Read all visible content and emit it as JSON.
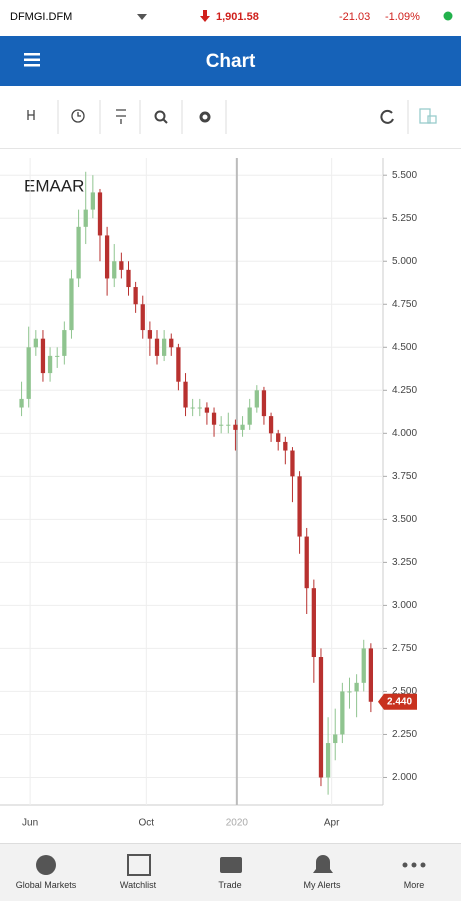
{
  "header": {
    "ticker": "DFMGI.DFM",
    "index_value": "1,901.58",
    "change": "-21.03",
    "change_pct": "-1.09%"
  },
  "app_bar": {
    "title": "Chart"
  },
  "chart_data": {
    "type": "candlestick",
    "title": "EMAAR",
    "up_color": "#8fc48f",
    "down_color": "#b8312f",
    "x": [
      0,
      1,
      2,
      3,
      4,
      5,
      6,
      7,
      8,
      9,
      10,
      11,
      12,
      13,
      14,
      15,
      16,
      17,
      18,
      19,
      20,
      21,
      22,
      23,
      24,
      25,
      26,
      27,
      28,
      29,
      30,
      31,
      32,
      33,
      34,
      35,
      36,
      37,
      38,
      39,
      40,
      41,
      42,
      43,
      44,
      45,
      46,
      47,
      48,
      49
    ],
    "open": [
      4.15,
      4.2,
      4.5,
      4.55,
      4.35,
      4.45,
      4.45,
      4.6,
      4.9,
      5.2,
      5.3,
      5.4,
      5.15,
      4.9,
      5.0,
      4.95,
      4.85,
      4.75,
      4.6,
      4.55,
      4.45,
      4.55,
      4.5,
      4.3,
      4.15,
      4.15,
      4.15,
      4.12,
      4.05,
      4.05,
      4.05,
      4.02,
      4.05,
      4.15,
      4.25,
      4.1,
      4.0,
      3.95,
      3.9,
      3.75,
      3.4,
      3.1,
      2.7,
      2.0,
      2.2,
      2.25,
      2.5,
      2.5,
      2.55,
      2.75
    ],
    "high": [
      4.3,
      4.62,
      4.6,
      4.6,
      4.5,
      4.5,
      4.65,
      4.95,
      5.3,
      5.52,
      5.5,
      5.42,
      5.2,
      5.1,
      5.05,
      5.0,
      4.88,
      4.8,
      4.65,
      4.6,
      4.6,
      4.58,
      4.52,
      4.35,
      4.2,
      4.2,
      4.18,
      4.15,
      4.1,
      4.12,
      4.08,
      4.1,
      4.2,
      4.28,
      4.27,
      4.12,
      4.02,
      3.98,
      3.92,
      3.78,
      3.45,
      3.15,
      2.75,
      2.35,
      2.4,
      2.55,
      2.58,
      2.6,
      2.8,
      2.78
    ],
    "low": [
      4.1,
      4.15,
      4.45,
      4.3,
      4.3,
      4.38,
      4.4,
      4.55,
      4.85,
      5.1,
      5.25,
      5.0,
      4.8,
      4.85,
      4.9,
      4.8,
      4.7,
      4.55,
      4.45,
      4.4,
      4.42,
      4.45,
      4.25,
      4.1,
      4.1,
      4.1,
      4.05,
      3.98,
      4.0,
      4.0,
      3.9,
      3.98,
      4.02,
      4.12,
      4.05,
      3.95,
      3.9,
      3.82,
      3.6,
      3.3,
      2.95,
      2.55,
      1.95,
      1.9,
      2.1,
      2.2,
      2.4,
      2.35,
      2.5,
      2.38
    ],
    "close": [
      4.2,
      4.5,
      4.55,
      4.35,
      4.45,
      4.45,
      4.6,
      4.9,
      5.2,
      5.3,
      5.4,
      5.15,
      4.9,
      5.0,
      4.95,
      4.85,
      4.75,
      4.6,
      4.55,
      4.45,
      4.55,
      4.5,
      4.3,
      4.15,
      4.15,
      4.15,
      4.12,
      4.05,
      4.05,
      4.05,
      4.02,
      4.05,
      4.15,
      4.25,
      4.1,
      4.0,
      3.95,
      3.9,
      3.75,
      3.4,
      3.1,
      2.7,
      2.0,
      2.2,
      2.25,
      2.5,
      2.5,
      2.55,
      2.75,
      2.44
    ],
    "xlim": [
      -0.5,
      50
    ],
    "xticks": [
      {
        "value": 1.2,
        "label": "Jun"
      },
      {
        "value": 17.5,
        "label": "Oct"
      },
      {
        "value": 30.2,
        "label": "2020"
      },
      {
        "value": 43.5,
        "label": "Apr"
      }
    ],
    "ylim": [
      1.84,
      5.6
    ],
    "yticks": [
      {
        "value": 2.0,
        "label": "2.000"
      },
      {
        "value": 2.25,
        "label": "2.250"
      },
      {
        "value": 2.5,
        "label": "2.500"
      },
      {
        "value": 2.75,
        "label": "2.750"
      },
      {
        "value": 3.0,
        "label": "3.000"
      },
      {
        "value": 3.25,
        "label": "3.250"
      },
      {
        "value": 3.5,
        "label": "3.500"
      },
      {
        "value": 3.75,
        "label": "3.750"
      },
      {
        "value": 4.0,
        "label": "4.000"
      },
      {
        "value": 4.25,
        "label": "4.250"
      },
      {
        "value": 4.5,
        "label": "4.500"
      },
      {
        "value": 4.75,
        "label": "4.750"
      },
      {
        "value": 5.0,
        "label": "5.000"
      },
      {
        "value": 5.25,
        "label": "5.250"
      },
      {
        "value": 5.5,
        "label": "5.500"
      }
    ],
    "last_price": {
      "value": 2.44,
      "label": "2.440"
    },
    "grid": true
  },
  "nav": [
    "Global Markets",
    "Watchlist",
    "Trade",
    "My Alerts",
    "More"
  ]
}
